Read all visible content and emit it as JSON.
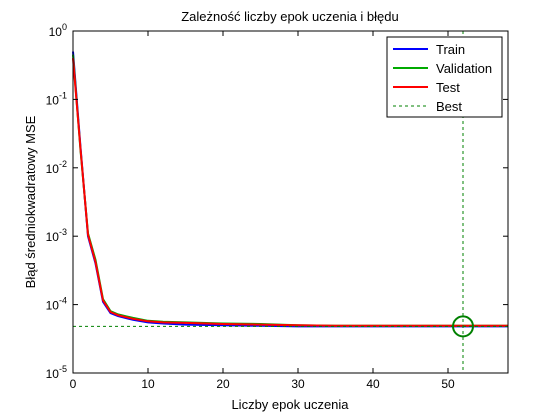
{
  "chart_data": {
    "type": "line",
    "title": "Zależność liczby epok uczenia i błędu",
    "xlabel": "Liczby epok uczenia",
    "ylabel": "Błąd średniokwadratowy MSE",
    "y_scale": "log",
    "xlim": [
      0,
      58
    ],
    "ylim": [
      1e-05,
      1
    ],
    "x_ticks": [
      0,
      10,
      20,
      30,
      40,
      50
    ],
    "y_ticks": [
      1e-05,
      0.0001,
      0.001,
      0.01,
      0.1,
      1
    ],
    "y_tick_labels": [
      {
        "base": "10",
        "exp": "-5"
      },
      {
        "base": "10",
        "exp": "-4"
      },
      {
        "base": "10",
        "exp": "-3"
      },
      {
        "base": "10",
        "exp": "-2"
      },
      {
        "base": "10",
        "exp": "-1"
      },
      {
        "base": "10",
        "exp": "0"
      }
    ],
    "grid": false,
    "legend_position": "top-right",
    "series": [
      {
        "name": "Train",
        "color": "#0000ff",
        "x": [
          0,
          1,
          2,
          3,
          4,
          5,
          6,
          8,
          10,
          12,
          15,
          20,
          25,
          30,
          35,
          40,
          45,
          50,
          52,
          55,
          58
        ],
        "y": [
          0.5,
          0.02,
          0.001,
          0.0004,
          0.00011,
          7.5e-05,
          6.8e-05,
          6e-05,
          5.5e-05,
          5.3e-05,
          5.1e-05,
          5e-05,
          4.9e-05,
          4.8e-05,
          4.8e-05,
          4.8e-05,
          4.8e-05,
          4.8e-05,
          4.8e-05,
          4.8e-05,
          4.8e-05
        ]
      },
      {
        "name": "Validation",
        "color": "#00aa00",
        "x": [
          0,
          1,
          2,
          3,
          4,
          5,
          6,
          8,
          10,
          12,
          15,
          20,
          25,
          30,
          35,
          40,
          45,
          50,
          52,
          55,
          58
        ],
        "y": [
          0.45,
          0.018,
          0.0011,
          0.00045,
          0.00012,
          8e-05,
          7.2e-05,
          6.4e-05,
          5.8e-05,
          5.6e-05,
          5.5e-05,
          5.3e-05,
          5.2e-05,
          5e-05,
          4.9e-05,
          4.9e-05,
          4.9e-05,
          4.9e-05,
          4.9e-05,
          4.9e-05,
          4.9e-05
        ]
      },
      {
        "name": "Test",
        "color": "#ff0000",
        "x": [
          0,
          1,
          2,
          3,
          4,
          5,
          6,
          8,
          10,
          12,
          15,
          20,
          25,
          30,
          35,
          40,
          45,
          50,
          52,
          55,
          58
        ],
        "y": [
          0.4,
          0.019,
          0.00105,
          0.00042,
          0.000115,
          7.8e-05,
          7e-05,
          6.2e-05,
          5.7e-05,
          5.5e-05,
          5.4e-05,
          5.2e-05,
          5.1e-05,
          5e-05,
          4.9e-05,
          4.9e-05,
          4.9e-05,
          4.9e-05,
          4.9e-05,
          4.9e-05,
          4.9e-05
        ]
      }
    ],
    "best": {
      "name": "Best",
      "color": "#008000",
      "epoch": 52,
      "value": 4.8e-05
    }
  }
}
